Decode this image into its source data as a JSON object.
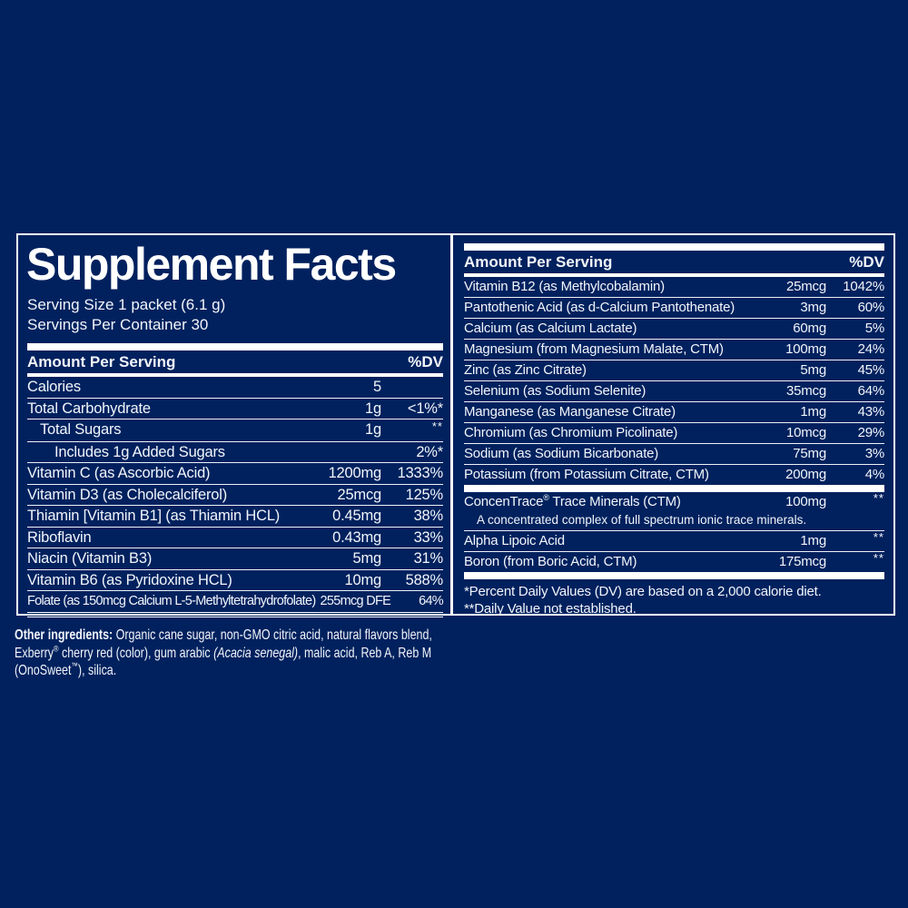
{
  "colors": {
    "background": "#00215e",
    "text": "#f2f5fa",
    "line": "#ffffff"
  },
  "title": "Supplement Facts",
  "serving_size": "Serving Size 1 packet (6.1 g)",
  "servings_per_container": "Servings Per Container 30",
  "column_headers": {
    "amount_label": "Amount Per Serving",
    "dv_label": "%DV"
  },
  "left_rows": [
    {
      "name": "Calories",
      "amount": "5",
      "dv": "",
      "indent": 0
    },
    {
      "name": "Total Carbohydrate",
      "amount": "1g",
      "dv": "<1%*",
      "indent": 0
    },
    {
      "name": "Total Sugars",
      "amount": "1g",
      "dv": "**",
      "indent": 1
    },
    {
      "name": "Includes 1g Added Sugars",
      "amount": "",
      "dv": "2%*",
      "indent": 2
    },
    {
      "name": "Vitamin C (as Ascorbic Acid)",
      "amount": "1200mg",
      "dv": "1333%",
      "indent": 0
    },
    {
      "name": "Vitamin D3 (as Cholecalciferol)",
      "amount": "25mcg",
      "dv": "125%",
      "indent": 0
    },
    {
      "name": "Thiamin [Vitamin B1] (as Thiamin HCL)",
      "amount": "0.45mg",
      "dv": "38%",
      "indent": 0
    },
    {
      "name": "Riboflavin",
      "amount": "0.43mg",
      "dv": "33%",
      "indent": 0
    },
    {
      "name": "Niacin (Vitamin B3)",
      "amount": "5mg",
      "dv": "31%",
      "indent": 0
    },
    {
      "name": "Vitamin B6 (as Pyridoxine HCL)",
      "amount": "10mg",
      "dv": "588%",
      "indent": 0
    },
    {
      "name": "Folate (as 150mcg Calcium L-5-Methyltetrahydrofolate)",
      "amount": "255mcg DFE",
      "dv": "64%",
      "indent": 0,
      "condensed": true
    }
  ],
  "right_rows": [
    {
      "name": "Vitamin B12 (as Methylcobalamin)",
      "amount": "25mcg",
      "dv": "1042%"
    },
    {
      "name": "Pantothenic Acid (as d-Calcium Pantothenate)",
      "amount": "3mg",
      "dv": "60%"
    },
    {
      "name": "Calcium (as Calcium Lactate)",
      "amount": "60mg",
      "dv": "5%"
    },
    {
      "name": "Magnesium (from Magnesium Malate, CTM)",
      "amount": "100mg",
      "dv": "24%"
    },
    {
      "name": "Zinc (as Zinc Citrate)",
      "amount": "5mg",
      "dv": "45%"
    },
    {
      "name": "Selenium (as Sodium Selenite)",
      "amount": "35mcg",
      "dv": "64%"
    },
    {
      "name": "Manganese (as Manganese Citrate)",
      "amount": "1mg",
      "dv": "43%"
    },
    {
      "name": "Chromium (as Chromium Picolinate)",
      "amount": "10mcg",
      "dv": "29%"
    },
    {
      "name": "Sodium (as Sodium Bicarbonate)",
      "amount": "75mg",
      "dv": "3%"
    },
    {
      "name": "Potassium (from Potassium Citrate, CTM)",
      "amount": "200mg",
      "dv": "4%"
    }
  ],
  "extra_rows": [
    {
      "name": "ConcenTrace® Trace Minerals (CTM)",
      "amount": "100mg",
      "dv": "**",
      "note": "A concentrated complex of full spectrum ionic trace minerals."
    },
    {
      "name": "Alpha Lipoic Acid",
      "amount": "1mg",
      "dv": "**"
    },
    {
      "name": "Boron (from Boric Acid, CTM)",
      "amount": "175mcg",
      "dv": "**"
    }
  ],
  "footnotes": [
    "*Percent Daily Values (DV) are based on a 2,000 calorie diet.",
    "**Daily Value not established."
  ],
  "other_ingredients": {
    "lines": [
      [
        {
          "t": "Other ingredients: ",
          "b": true
        },
        {
          "t": "Organic cane sugar, non-GMO citric acid, natural flavors blend,"
        }
      ],
      [
        {
          "t": "Exberry® cherry red (color), gum arabic "
        },
        {
          "t": "(Acacia senegal)",
          "i": true
        },
        {
          "t": ", malic acid, Reb A, Reb M"
        }
      ],
      [
        {
          "t": "(OnoSweet™), silica."
        }
      ]
    ]
  }
}
